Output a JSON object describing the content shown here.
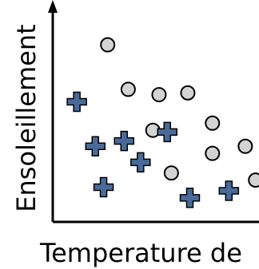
{
  "chart_data": {
    "type": "scatter",
    "title": "",
    "xlabel": "Temperature de",
    "ylabel": "Ensoleillement",
    "xlim": [
      0,
      10
    ],
    "ylim": [
      0,
      10
    ],
    "grid": false,
    "legend": "none",
    "series": [
      {
        "marker": "circle",
        "color": "#d3d3d3",
        "points": [
          [
            2.4,
            9.5
          ],
          [
            3.4,
            7.0
          ],
          [
            4.9,
            6.7
          ],
          [
            6.3,
            6.8
          ],
          [
            7.5,
            5.1
          ],
          [
            4.6,
            4.7
          ],
          [
            7.5,
            3.4
          ],
          [
            9.1,
            3.8
          ],
          [
            5.5,
            2.3
          ],
          [
            9.6,
            1.9
          ]
        ]
      },
      {
        "marker": "plus",
        "color": "#4a6a9a",
        "points": [
          [
            0.9,
            6.3
          ],
          [
            1.8,
            3.8
          ],
          [
            3.2,
            4.1
          ],
          [
            4.0,
            2.9
          ],
          [
            5.3,
            4.6
          ],
          [
            2.2,
            1.5
          ],
          [
            6.4,
            0.9
          ],
          [
            8.3,
            1.3
          ]
        ]
      }
    ]
  }
}
